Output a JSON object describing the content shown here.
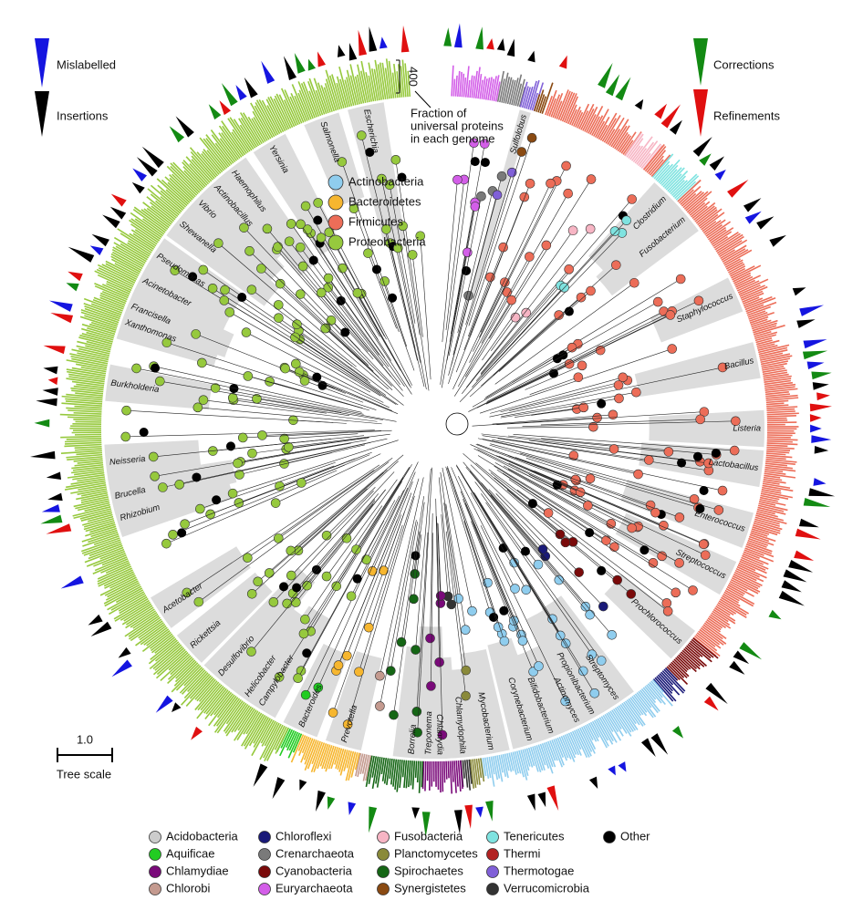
{
  "annotations": {
    "mislabelled": "Mislabelled",
    "insertions": "Insertions",
    "corrections": "Corrections",
    "refinements": "Refinements",
    "axis_max": 400,
    "axis_caption": [
      "Fraction of",
      "universal proteins",
      "in each genome"
    ],
    "scale_value": "1.0",
    "scale_label": "Tree scale"
  },
  "main_legend": [
    {
      "label": "Actinobacteria",
      "color": "#8fcdee"
    },
    {
      "label": "Bacteroidetes",
      "color": "#f6b62f"
    },
    {
      "label": "Firmicutes",
      "color": "#ec6d58"
    },
    {
      "label": "Proteobacteria",
      "color": "#96c93d"
    }
  ],
  "phylum_legend": [
    {
      "label": "Acidobacteria",
      "color": "#cccccc"
    },
    {
      "label": "Aquificae",
      "color": "#22cc22"
    },
    {
      "label": "Chlamydiae",
      "color": "#7a0a7a"
    },
    {
      "label": "Chlorobi",
      "color": "#c49a8f"
    },
    {
      "label": "Chloroflexi",
      "color": "#1a1a78"
    },
    {
      "label": "Crenarchaeota",
      "color": "#7a7a7a"
    },
    {
      "label": "Cyanobacteria",
      "color": "#7a0a0a"
    },
    {
      "label": "Euryarchaeota",
      "color": "#d35ee8"
    },
    {
      "label": "Fusobacteria",
      "color": "#f7b5c4"
    },
    {
      "label": "Planctomycetes",
      "color": "#8a8a3a"
    },
    {
      "label": "Spirochaetes",
      "color": "#156615"
    },
    {
      "label": "Synergistetes",
      "color": "#8a4a12"
    },
    {
      "label": "Tenericutes",
      "color": "#7fe3e0"
    },
    {
      "label": "Thermi",
      "color": "#b22222"
    },
    {
      "label": "Thermotogae",
      "color": "#8060d8"
    },
    {
      "label": "Verrucomicrobia",
      "color": "#333333"
    },
    {
      "label": "Other",
      "color": "#000000"
    }
  ],
  "genus_labels": [
    "Escherichia",
    "Salmonella",
    "Yersinia",
    "Haemophilus",
    "Actinobacillus",
    "Vibrio",
    "Shewanella",
    "Pseudomonas",
    "Acinetobacter",
    "Francisella",
    "Xanthomonas",
    "Burkholderia",
    "Neisseria",
    "Brucella",
    "Rhizobium",
    "Acetobacter",
    "Rickettsia",
    "Desulfovibrio",
    "Helicobacter",
    "Campylobacter",
    "Bacteroides",
    "Prevotella",
    "Treponema",
    "Borrelia",
    "Chlamydophila",
    "Chlamydia",
    "Mycobacterium",
    "Corynebacterium",
    "Bifidobacterium",
    "Actinomyces",
    "Propionibacterium",
    "Streptomyces",
    "Prochlorococcus",
    "Streptococcus",
    "Enterococcus",
    "Lactobacillus",
    "Listeria",
    "Bacillus",
    "Staphylococcus",
    "Fusobacterium",
    "Clostridium",
    "Sulfolobus"
  ]
}
